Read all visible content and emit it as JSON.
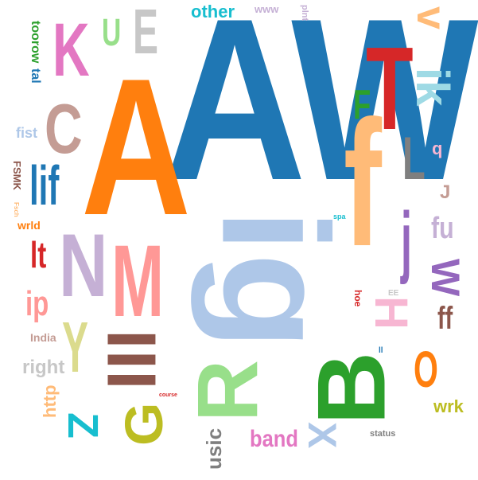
{
  "words": {
    "AW": "AW",
    "A": "A",
    "ig": "ig",
    "T": "T",
    "f": "f",
    "B": "B",
    "R": "R",
    "N": "N",
    "M": "M",
    "K": "K",
    "C": "C",
    "E": "E",
    "U": "U",
    "lif": "lif",
    "v": "v",
    "ik": "ik",
    "j": "j",
    "L": "L",
    "F": "F",
    "lt": "lt",
    "ip": "ip",
    "Y": "Y",
    "G": "G",
    "Z": "Z",
    "X": "X",
    "H": "H",
    "O": "O",
    "W": "W",
    "fu": "fu",
    "ff": "ff",
    "wrk": "wrk",
    "band": "band",
    "usic": "usic",
    "right": "right",
    "http": "http",
    "India": "India",
    "other": "other",
    "www": "www",
    "toorow": "toorow",
    "tal": "tal",
    "fist": "fist",
    "FSMK": "FSMK",
    "wrld": "wrld",
    "status": "status",
    "hoe": "hoe",
    "plnt": "plnt",
    "spa": "spa",
    "course": "course",
    "lll": "lll",
    "q": "q",
    "J": "J",
    "Fsch": "Fsch",
    "ll": "ll",
    "EE": "EE"
  },
  "colors": {
    "blue": "#1f77b4",
    "orange": "#ff7f0e",
    "light_blue": "#aec7e8",
    "red": "#d62728",
    "peach": "#ffbb78",
    "green": "#2ca02c",
    "light_green": "#98df8a",
    "lavender": "#c5b0d5",
    "pink": "#ff9896",
    "magenta": "#e377c2",
    "tan": "#c49c94",
    "gray": "#c7c7c7",
    "purple": "#9467bd",
    "dark_gray": "#7f7f7f",
    "olive_light": "#dbdb8d",
    "olive": "#bcbd22",
    "cyan": "#17becf",
    "brown": "#8c564b",
    "light_pink": "#f7b6d2",
    "light_cyan": "#9edae5"
  }
}
